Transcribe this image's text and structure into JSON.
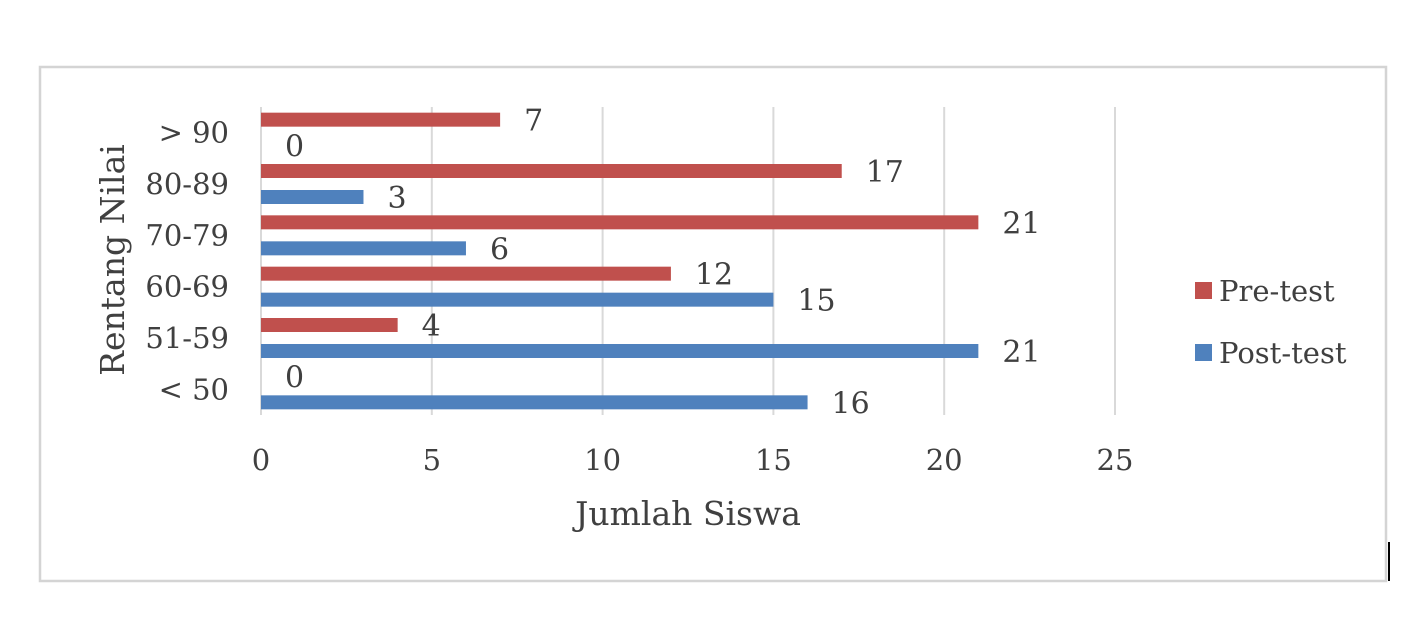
{
  "chart_data": {
    "type": "bar",
    "orientation": "horizontal",
    "categories": [
      "< 50",
      "51-59",
      "60-69",
      "70-79",
      "80-89",
      "> 90"
    ],
    "series": [
      {
        "name": "Post-test",
        "color": "#4f81bd",
        "values": [
          16,
          21,
          15,
          6,
          3,
          0
        ]
      },
      {
        "name": "Pre-test",
        "color": "#c0504d",
        "values": [
          0,
          4,
          12,
          21,
          17,
          7
        ]
      }
    ],
    "xlabel": "Jumlah Siswa",
    "ylabel": "Rentang Nilai",
    "xlim": [
      0,
      25
    ],
    "xticks": [
      0,
      5,
      10,
      15,
      20,
      25
    ],
    "grid": true,
    "legend_position": "right",
    "legend_order": [
      "Pre-test",
      "Post-test"
    ],
    "data_labels": true
  }
}
